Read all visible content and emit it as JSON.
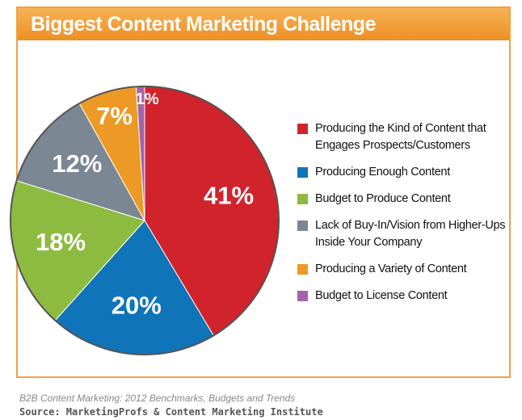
{
  "chart_data": {
    "type": "pie",
    "title": "Biggest Content Marketing Challenge",
    "categories": [
      "Producing the Kind of Content that Engages Prospects/Customers",
      "Producing Enough Content",
      "Budget to Produce Content",
      "Lack of Buy-In/Vision from Higher-Ups Inside Your Company",
      "Producing a Variety of Content",
      "Budget to License Content"
    ],
    "values": [
      41,
      20,
      18,
      12,
      7,
      1
    ],
    "value_labels": [
      "41%",
      "20%",
      "18%",
      "12%",
      "7%",
      "1%"
    ],
    "colors": [
      "#d1232b",
      "#1074b8",
      "#8dbb40",
      "#7b8792",
      "#ec9a25",
      "#a463a9"
    ],
    "footnote": "B2B Content Marketing: 2012 Benchmarks, Budgets and Trends",
    "source": "Source: MarketingProfs & Content Marketing Institute"
  }
}
